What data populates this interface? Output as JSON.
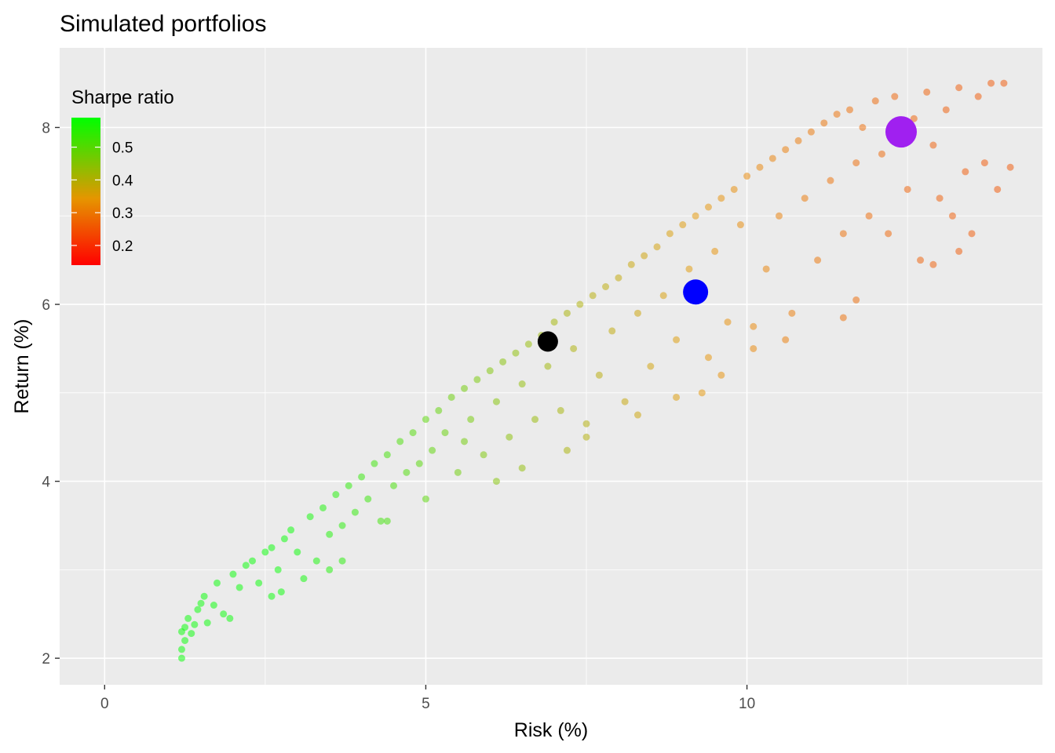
{
  "colors": {
    "panel_background": "#ebebeb",
    "grid_major": "#ffffff",
    "tick_text": "#4d4d4d",
    "gradient_low": "#ff0000",
    "gradient_mid": "#e69500",
    "gradient_high": "#00ff00",
    "highlight_min_variance": "#000000",
    "highlight_mid": "#0000ff",
    "highlight_max_return": "#a020f0"
  },
  "chart_data": {
    "type": "scatter",
    "title": "Simulated portfolios",
    "xlabel": "Risk (%)",
    "ylabel": "Return (%)",
    "xlim": [
      -0.7,
      14.6
    ],
    "ylim": [
      1.7,
      8.9
    ],
    "x_ticks": [
      0,
      5,
      10
    ],
    "x_tick_labels": [
      "0",
      "5",
      "10"
    ],
    "y_ticks": [
      2,
      4,
      6,
      8
    ],
    "y_tick_labels": [
      "2",
      "4",
      "6",
      "8"
    ],
    "grid": true,
    "point_alpha": 0.5,
    "legend": {
      "title": "Sharpe ratio",
      "position": "inside-top-left",
      "range": [
        0.14,
        0.59
      ],
      "breaks": [
        0.5,
        0.4,
        0.3,
        0.2
      ],
      "break_labels": [
        "0.5",
        "0.4",
        "0.3",
        "0.2"
      ]
    },
    "highlighted_points": [
      {
        "x": 6.9,
        "y": 5.58,
        "color": "#000000"
      },
      {
        "x": 9.2,
        "y": 6.14,
        "color": "#0000ff"
      },
      {
        "x": 12.4,
        "y": 7.95,
        "color": "#a020f0"
      }
    ],
    "points": [
      {
        "x": 1.2,
        "y": 2.0
      },
      {
        "x": 1.2,
        "y": 2.1
      },
      {
        "x": 1.25,
        "y": 2.2
      },
      {
        "x": 1.2,
        "y": 2.3
      },
      {
        "x": 1.25,
        "y": 2.35
      },
      {
        "x": 1.3,
        "y": 2.45
      },
      {
        "x": 1.35,
        "y": 2.28
      },
      {
        "x": 1.4,
        "y": 2.38
      },
      {
        "x": 1.45,
        "y": 2.55
      },
      {
        "x": 1.5,
        "y": 2.62
      },
      {
        "x": 1.55,
        "y": 2.7
      },
      {
        "x": 1.6,
        "y": 2.4
      },
      {
        "x": 1.7,
        "y": 2.6
      },
      {
        "x": 1.75,
        "y": 2.85
      },
      {
        "x": 1.85,
        "y": 2.5
      },
      {
        "x": 1.95,
        "y": 2.45
      },
      {
        "x": 2.0,
        "y": 2.95
      },
      {
        "x": 2.1,
        "y": 2.8
      },
      {
        "x": 2.2,
        "y": 3.05
      },
      {
        "x": 2.3,
        "y": 3.1
      },
      {
        "x": 2.4,
        "y": 2.85
      },
      {
        "x": 2.5,
        "y": 3.2
      },
      {
        "x": 2.6,
        "y": 3.25
      },
      {
        "x": 2.7,
        "y": 3.0
      },
      {
        "x": 2.75,
        "y": 2.75
      },
      {
        "x": 2.8,
        "y": 3.35
      },
      {
        "x": 2.9,
        "y": 3.45
      },
      {
        "x": 3.0,
        "y": 3.2
      },
      {
        "x": 3.1,
        "y": 2.9
      },
      {
        "x": 3.2,
        "y": 3.6
      },
      {
        "x": 3.3,
        "y": 3.1
      },
      {
        "x": 3.4,
        "y": 3.7
      },
      {
        "x": 3.5,
        "y": 3.4
      },
      {
        "x": 3.6,
        "y": 3.85
      },
      {
        "x": 3.7,
        "y": 3.5
      },
      {
        "x": 3.7,
        "y": 3.1
      },
      {
        "x": 3.8,
        "y": 3.95
      },
      {
        "x": 3.9,
        "y": 3.65
      },
      {
        "x": 4.0,
        "y": 4.05
      },
      {
        "x": 4.1,
        "y": 3.8
      },
      {
        "x": 4.2,
        "y": 4.2
      },
      {
        "x": 4.3,
        "y": 3.55
      },
      {
        "x": 4.4,
        "y": 4.3
      },
      {
        "x": 4.5,
        "y": 3.95
      },
      {
        "x": 4.6,
        "y": 4.45
      },
      {
        "x": 4.7,
        "y": 4.1
      },
      {
        "x": 4.8,
        "y": 4.55
      },
      {
        "x": 4.9,
        "y": 4.2
      },
      {
        "x": 5.0,
        "y": 4.7
      },
      {
        "x": 5.0,
        "y": 3.8
      },
      {
        "x": 5.1,
        "y": 4.35
      },
      {
        "x": 5.2,
        "y": 4.8
      },
      {
        "x": 5.3,
        "y": 4.55
      },
      {
        "x": 5.4,
        "y": 4.95
      },
      {
        "x": 5.5,
        "y": 4.1
      },
      {
        "x": 5.6,
        "y": 5.05
      },
      {
        "x": 5.7,
        "y": 4.7
      },
      {
        "x": 5.8,
        "y": 5.15
      },
      {
        "x": 5.9,
        "y": 4.3
      },
      {
        "x": 6.0,
        "y": 5.25
      },
      {
        "x": 6.1,
        "y": 4.9
      },
      {
        "x": 6.2,
        "y": 5.35
      },
      {
        "x": 6.3,
        "y": 4.5
      },
      {
        "x": 6.4,
        "y": 5.45
      },
      {
        "x": 6.5,
        "y": 5.1
      },
      {
        "x": 6.6,
        "y": 5.55
      },
      {
        "x": 6.7,
        "y": 4.7
      },
      {
        "x": 6.8,
        "y": 5.65
      },
      {
        "x": 6.9,
        "y": 5.3
      },
      {
        "x": 7.0,
        "y": 5.8
      },
      {
        "x": 7.1,
        "y": 4.8
      },
      {
        "x": 7.2,
        "y": 5.9
      },
      {
        "x": 7.3,
        "y": 5.5
      },
      {
        "x": 7.4,
        "y": 6.0
      },
      {
        "x": 7.5,
        "y": 4.5
      },
      {
        "x": 7.6,
        "y": 6.1
      },
      {
        "x": 7.7,
        "y": 5.2
      },
      {
        "x": 7.8,
        "y": 6.2
      },
      {
        "x": 7.9,
        "y": 5.7
      },
      {
        "x": 8.0,
        "y": 6.3
      },
      {
        "x": 8.1,
        "y": 4.9
      },
      {
        "x": 8.2,
        "y": 6.45
      },
      {
        "x": 8.3,
        "y": 5.9
      },
      {
        "x": 8.4,
        "y": 6.55
      },
      {
        "x": 8.5,
        "y": 5.3
      },
      {
        "x": 8.6,
        "y": 6.65
      },
      {
        "x": 8.7,
        "y": 6.1
      },
      {
        "x": 8.8,
        "y": 6.8
      },
      {
        "x": 8.9,
        "y": 5.6
      },
      {
        "x": 9.0,
        "y": 6.9
      },
      {
        "x": 9.1,
        "y": 6.4
      },
      {
        "x": 9.2,
        "y": 7.0
      },
      {
        "x": 9.3,
        "y": 5.0
      },
      {
        "x": 9.4,
        "y": 7.1
      },
      {
        "x": 9.5,
        "y": 6.6
      },
      {
        "x": 9.6,
        "y": 7.2
      },
      {
        "x": 9.7,
        "y": 5.8
      },
      {
        "x": 9.8,
        "y": 7.3
      },
      {
        "x": 9.9,
        "y": 6.9
      },
      {
        "x": 10.0,
        "y": 7.45
      },
      {
        "x": 10.1,
        "y": 5.5
      },
      {
        "x": 10.2,
        "y": 7.55
      },
      {
        "x": 10.3,
        "y": 6.4
      },
      {
        "x": 10.4,
        "y": 7.65
      },
      {
        "x": 10.5,
        "y": 7.0
      },
      {
        "x": 10.6,
        "y": 7.75
      },
      {
        "x": 10.7,
        "y": 5.9
      },
      {
        "x": 10.8,
        "y": 7.85
      },
      {
        "x": 10.9,
        "y": 7.2
      },
      {
        "x": 11.0,
        "y": 7.95
      },
      {
        "x": 11.1,
        "y": 6.5
      },
      {
        "x": 11.2,
        "y": 8.05
      },
      {
        "x": 11.3,
        "y": 7.4
      },
      {
        "x": 11.4,
        "y": 8.15
      },
      {
        "x": 11.5,
        "y": 6.8
      },
      {
        "x": 11.6,
        "y": 8.2
      },
      {
        "x": 11.7,
        "y": 7.6
      },
      {
        "x": 11.8,
        "y": 8.0
      },
      {
        "x": 11.9,
        "y": 7.0
      },
      {
        "x": 12.0,
        "y": 8.3
      },
      {
        "x": 12.1,
        "y": 7.7
      },
      {
        "x": 12.2,
        "y": 6.8
      },
      {
        "x": 12.3,
        "y": 8.35
      },
      {
        "x": 12.5,
        "y": 7.3
      },
      {
        "x": 12.6,
        "y": 8.1
      },
      {
        "x": 12.7,
        "y": 6.5
      },
      {
        "x": 12.8,
        "y": 8.4
      },
      {
        "x": 12.9,
        "y": 7.8
      },
      {
        "x": 13.0,
        "y": 7.2
      },
      {
        "x": 13.1,
        "y": 8.2
      },
      {
        "x": 13.2,
        "y": 7.0
      },
      {
        "x": 13.3,
        "y": 8.45
      },
      {
        "x": 13.4,
        "y": 7.5
      },
      {
        "x": 13.5,
        "y": 6.8
      },
      {
        "x": 13.6,
        "y": 8.35
      },
      {
        "x": 13.7,
        "y": 7.6
      },
      {
        "x": 13.8,
        "y": 8.5
      },
      {
        "x": 13.9,
        "y": 7.3
      },
      {
        "x": 14.0,
        "y": 8.5
      },
      {
        "x": 14.1,
        "y": 7.55
      },
      {
        "x": 13.3,
        "y": 6.6
      },
      {
        "x": 12.9,
        "y": 6.45
      },
      {
        "x": 11.7,
        "y": 6.05
      },
      {
        "x": 11.5,
        "y": 5.85
      },
      {
        "x": 10.6,
        "y": 5.6
      },
      {
        "x": 10.1,
        "y": 5.75
      },
      {
        "x": 9.6,
        "y": 5.2
      },
      {
        "x": 9.4,
        "y": 5.4
      },
      {
        "x": 8.9,
        "y": 4.95
      },
      {
        "x": 8.3,
        "y": 4.75
      },
      {
        "x": 7.5,
        "y": 4.65
      },
      {
        "x": 7.2,
        "y": 4.35
      },
      {
        "x": 6.5,
        "y": 4.15
      },
      {
        "x": 6.1,
        "y": 4.0
      },
      {
        "x": 5.6,
        "y": 4.45
      },
      {
        "x": 4.4,
        "y": 3.55
      },
      {
        "x": 3.5,
        "y": 3.0
      },
      {
        "x": 2.6,
        "y": 2.7
      }
    ]
  }
}
